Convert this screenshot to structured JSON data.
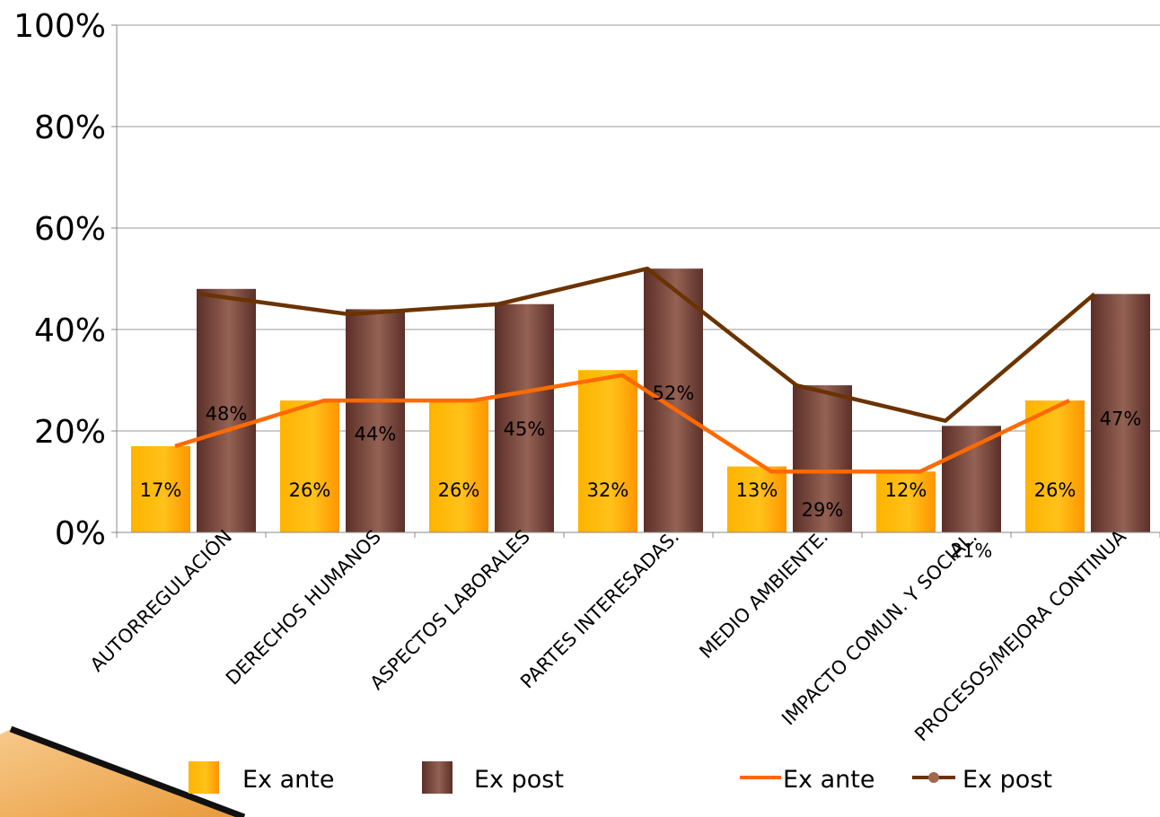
{
  "chart_data": {
    "type": "bar",
    "categories": [
      "AUTORREGULACIÓN",
      "DERECHOS HUMANOS",
      "ASPECTOS LABORALES",
      "PARTES INTERESADAS.",
      "MEDIO AMBIENTE.",
      "IMPACTO COMUN. Y SOCIAL.",
      "PROCESOS/MEJORA CONTINUA"
    ],
    "series": [
      {
        "name": "Ex ante",
        "kind": "bar",
        "values": [
          17,
          26,
          26,
          32,
          13,
          12,
          26
        ],
        "labels": [
          "17%",
          "26%",
          "26%",
          "32%",
          "13%",
          "12%",
          "26%"
        ],
        "color": "#FFA500"
      },
      {
        "name": "Ex post",
        "kind": "bar",
        "values": [
          48,
          44,
          45,
          52,
          29,
          21,
          47
        ],
        "labels": [
          "48%",
          "44%",
          "45%",
          "52%",
          "29%",
          "21%",
          "47%"
        ],
        "color": "#7A4A3E"
      },
      {
        "name": "Ex ante",
        "kind": "line",
        "values": [
          17,
          26,
          26,
          31,
          12,
          12,
          26
        ],
        "color": "#FF6A00"
      },
      {
        "name": "Ex post",
        "kind": "line",
        "values": [
          47,
          43,
          45,
          52,
          29,
          22,
          47
        ],
        "color": "#6B3300"
      }
    ],
    "yticks": [
      "0%",
      "20%",
      "40%",
      "60%",
      "80%",
      "100%"
    ],
    "ylim": [
      0,
      100
    ],
    "grid": true,
    "legend_position": "bottom"
  }
}
